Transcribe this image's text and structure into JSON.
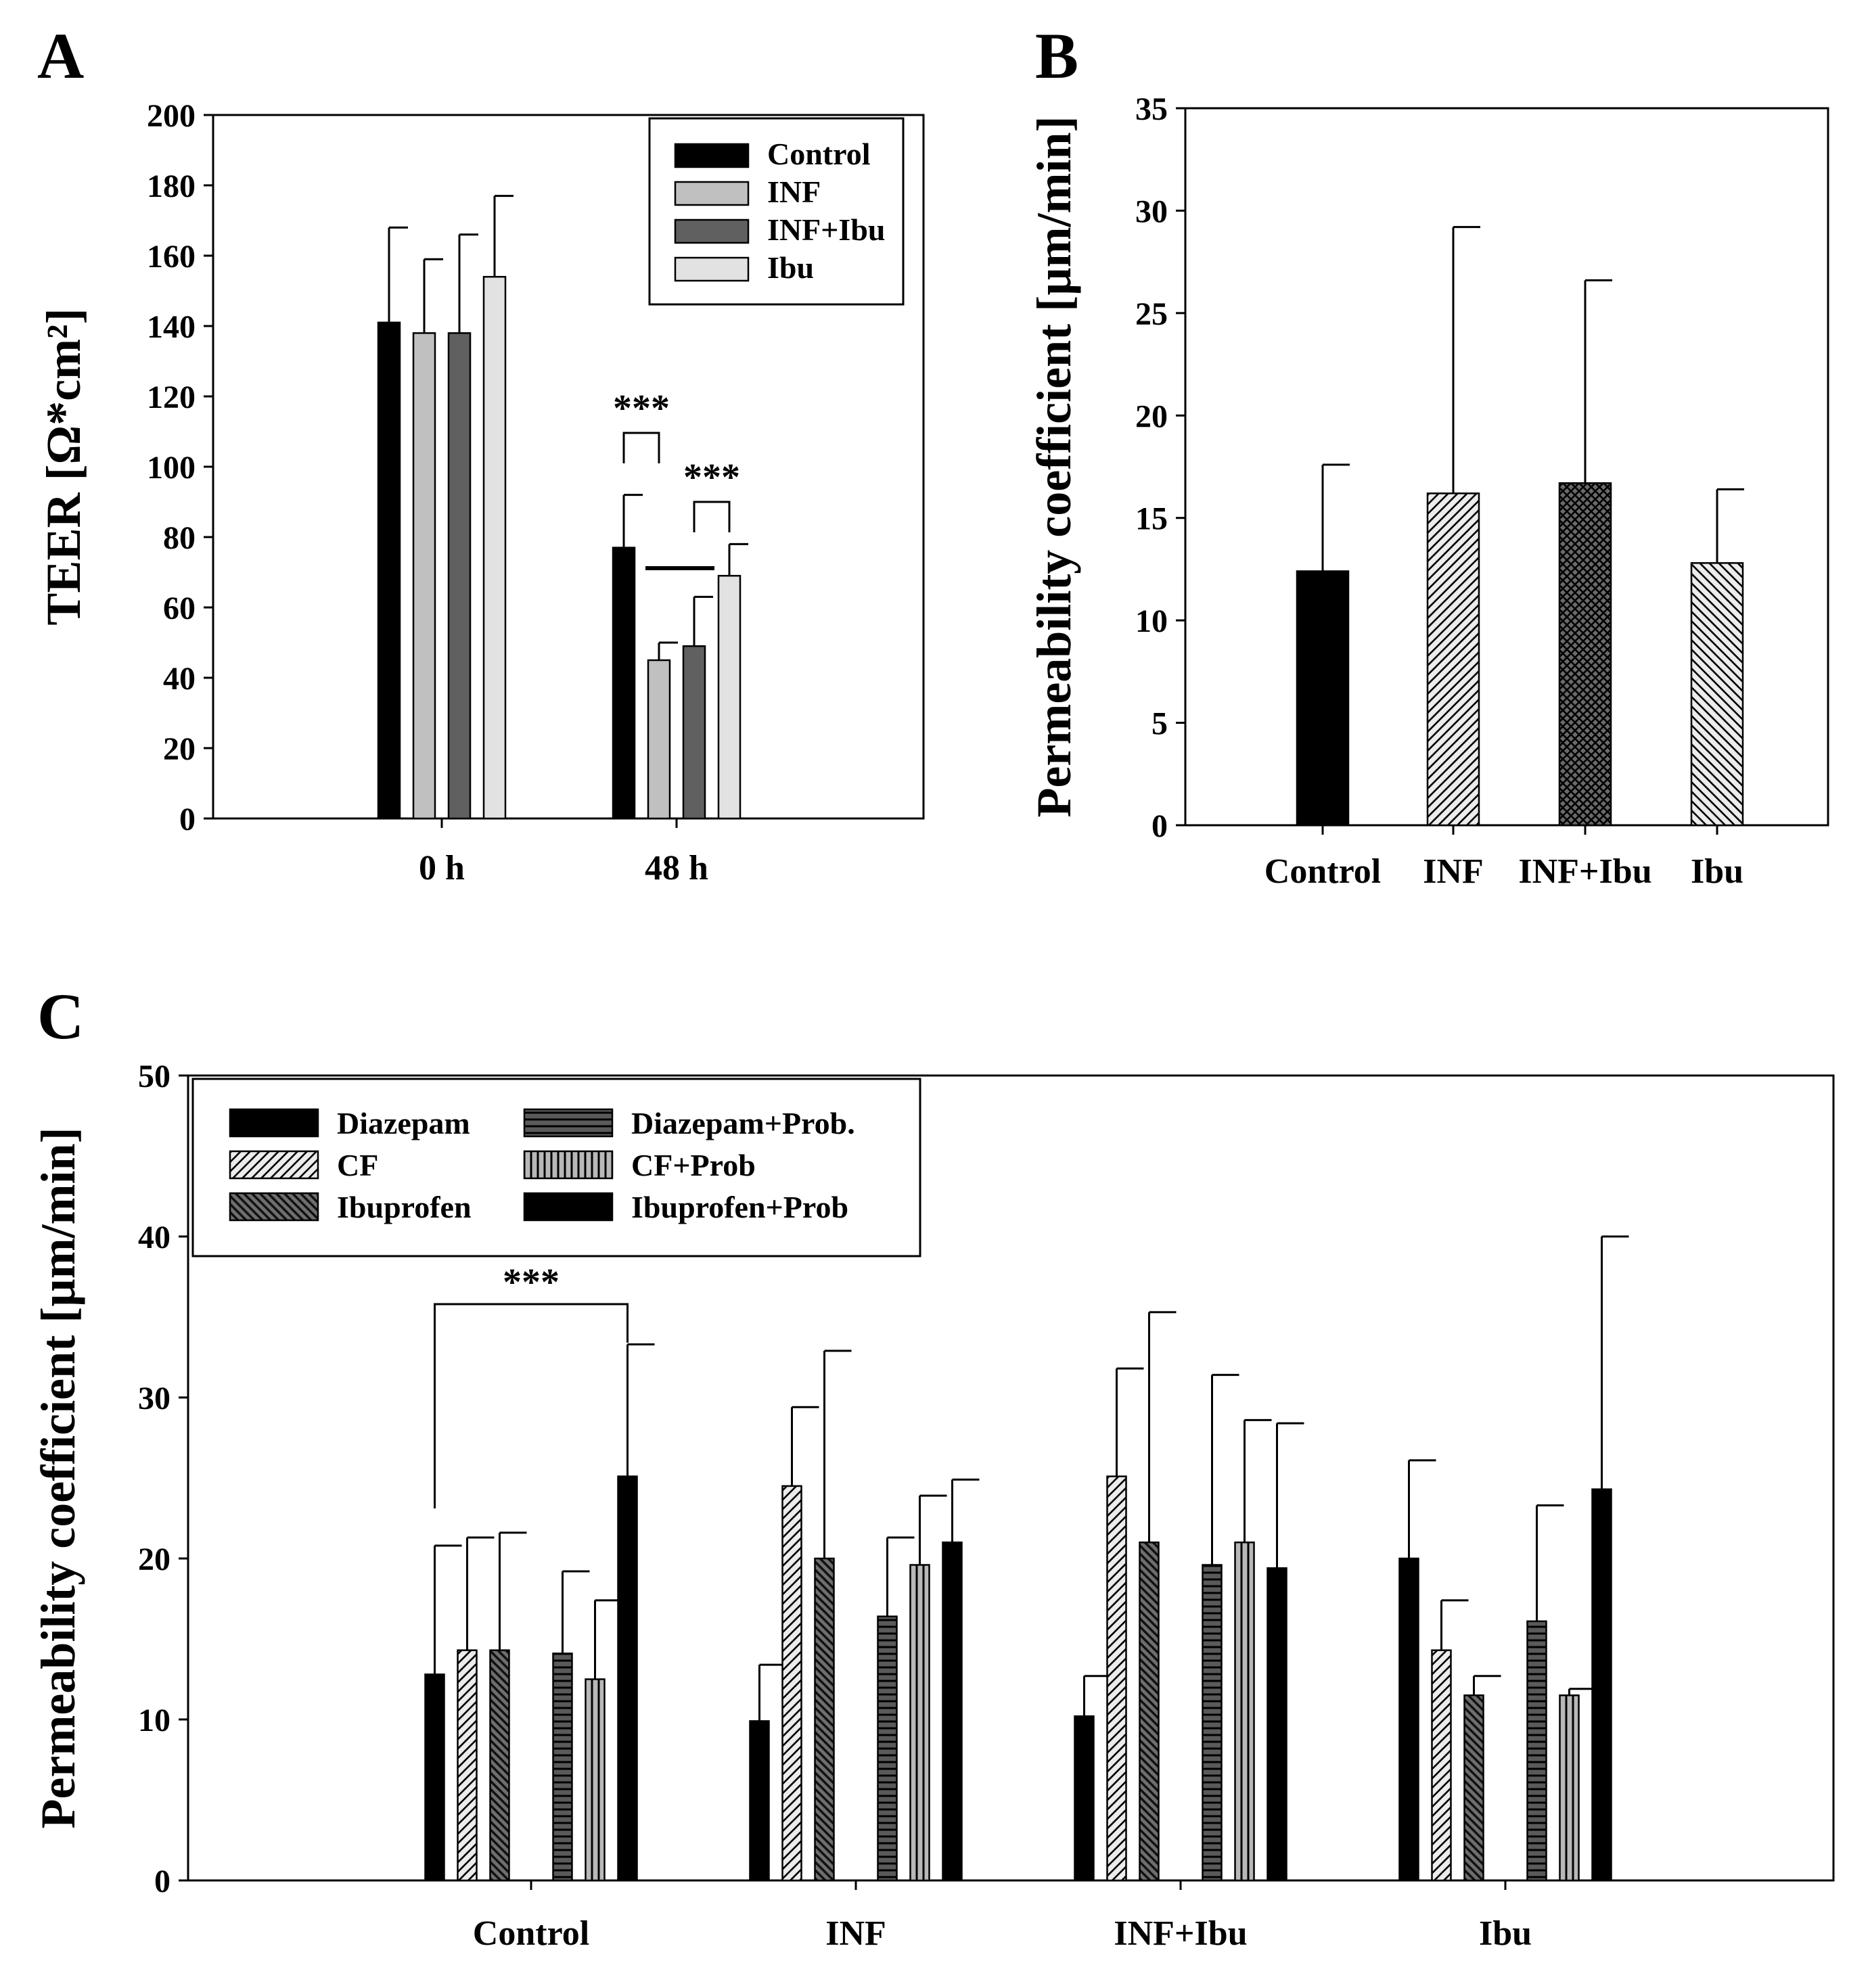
{
  "panels": {
    "a": "A",
    "b": "B",
    "c": "C"
  },
  "chart_data": [
    {
      "type": "bar",
      "panel": "A",
      "ylabel": "TEER [Ω*cm²]",
      "ylim": [
        0,
        200
      ],
      "yticks": [
        0,
        20,
        40,
        60,
        80,
        100,
        120,
        140,
        160,
        180,
        200
      ],
      "categories": [
        "0 h",
        "48 h"
      ],
      "series": [
        {
          "name": "Control",
          "values": [
            141,
            77
          ],
          "errors": [
            27,
            15
          ],
          "color": "#000000",
          "pattern": "solid"
        },
        {
          "name": "INF",
          "values": [
            138,
            45
          ],
          "errors": [
            21,
            5
          ],
          "color": "#c0c0c0",
          "pattern": "solid"
        },
        {
          "name": "INF+Ibu",
          "values": [
            138,
            49
          ],
          "errors": [
            28,
            14
          ],
          "color": "#606060",
          "pattern": "solid"
        },
        {
          "name": "Ibu",
          "values": [
            154,
            69
          ],
          "errors": [
            23,
            9
          ],
          "color": "#e2e2e2",
          "pattern": "solid"
        }
      ],
      "significance": [
        {
          "text": "***",
          "category": 1,
          "from_series": 0,
          "to_series": 1
        },
        {
          "text": "***",
          "category": 1,
          "from_series": 2,
          "to_series": 3
        }
      ],
      "legend": "top-right"
    },
    {
      "type": "bar",
      "panel": "B",
      "ylabel": "Permeability coefficient [µm/min]",
      "ylim": [
        0,
        35
      ],
      "yticks": [
        0,
        5,
        10,
        15,
        20,
        25,
        30,
        35
      ],
      "categories": [
        "Control",
        "INF",
        "INF+Ibu",
        "Ibu"
      ],
      "values": [
        12.4,
        16.2,
        16.7,
        12.8
      ],
      "errors": [
        5.2,
        13.0,
        9.9,
        3.6
      ],
      "patterns": [
        "solid",
        "hatch-right",
        "crosshatch",
        "hatch-left"
      ]
    },
    {
      "type": "bar",
      "panel": "C",
      "ylabel": "Permeability coefficient [µm/min]",
      "ylim": [
        0,
        50
      ],
      "yticks": [
        0,
        10,
        20,
        30,
        40,
        50
      ],
      "categories": [
        "Control",
        "INF",
        "INF+Ibu",
        "Ibu"
      ],
      "series": [
        {
          "name": "Diazepam",
          "values": [
            12.8,
            9.9,
            10.2,
            20.0
          ],
          "errors": [
            8.0,
            3.5,
            2.5,
            6.1
          ],
          "pattern": "solid"
        },
        {
          "name": "CF",
          "values": [
            14.3,
            24.5,
            25.1,
            14.3
          ],
          "errors": [
            7.0,
            4.9,
            6.7,
            3.1
          ],
          "pattern": "hatch-right"
        },
        {
          "name": "Ibuprofen",
          "values": [
            14.3,
            20.0,
            21.0,
            11.5
          ],
          "errors": [
            7.3,
            12.9,
            14.3,
            1.2
          ],
          "pattern": "hatch-left-dark"
        },
        {
          "name": "Diazepam+Prob.",
          "values": [
            14.1,
            16.4,
            19.6,
            16.1
          ],
          "errors": [
            5.1,
            4.9,
            11.8,
            7.2
          ],
          "pattern": "hstripe"
        },
        {
          "name": "CF+Prob",
          "values": [
            12.5,
            19.6,
            21.0,
            11.5
          ],
          "errors": [
            4.9,
            4.3,
            7.6,
            0.4
          ],
          "pattern": "vstripe"
        },
        {
          "name": "Ibuprofen+Prob",
          "values": [
            25.1,
            21.0,
            19.4,
            24.3
          ],
          "errors": [
            8.2,
            3.9,
            9.0,
            15.7
          ],
          "pattern": "solid"
        }
      ],
      "significance": [
        {
          "text": "***",
          "category": 0,
          "from_series": 0,
          "to_series": 5
        }
      ],
      "legend": "top-left"
    }
  ]
}
